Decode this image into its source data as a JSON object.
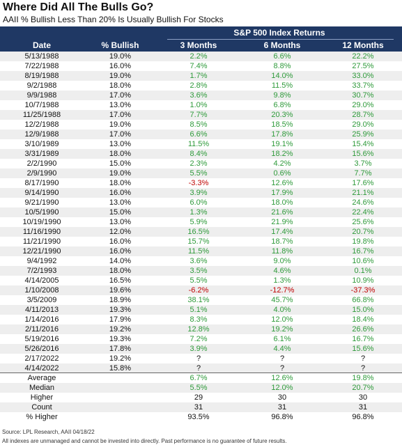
{
  "header": {
    "title": "Where Did All The Bulls Go?",
    "subtitle": "AAII % Bullish Less Than 20% Is Usually Bullish For Stocks"
  },
  "table": {
    "group_header": "S&P 500 Index Returns",
    "columns": [
      "Date",
      "% Bullish",
      "3 Months",
      "6 Months",
      "12 Months"
    ],
    "rows": [
      [
        "5/13/1988",
        "19.0%",
        "2.2%",
        "6.6%",
        "22.2%"
      ],
      [
        "7/22/1988",
        "16.0%",
        "7.4%",
        "8.8%",
        "27.5%"
      ],
      [
        "8/19/1988",
        "19.0%",
        "1.7%",
        "14.0%",
        "33.0%"
      ],
      [
        "9/2/1988",
        "18.0%",
        "2.8%",
        "11.5%",
        "33.7%"
      ],
      [
        "9/9/1988",
        "17.0%",
        "3.6%",
        "9.8%",
        "30.7%"
      ],
      [
        "10/7/1988",
        "13.0%",
        "1.0%",
        "6.8%",
        "29.0%"
      ],
      [
        "11/25/1988",
        "17.0%",
        "7.7%",
        "20.3%",
        "28.7%"
      ],
      [
        "12/2/1988",
        "19.0%",
        "8.5%",
        "18.5%",
        "29.0%"
      ],
      [
        "12/9/1988",
        "17.0%",
        "6.6%",
        "17.8%",
        "25.9%"
      ],
      [
        "3/10/1989",
        "13.0%",
        "11.5%",
        "19.1%",
        "15.4%"
      ],
      [
        "3/31/1989",
        "18.0%",
        "8.4%",
        "18.2%",
        "15.6%"
      ],
      [
        "2/2/1990",
        "15.0%",
        "2.3%",
        "4.2%",
        "3.7%"
      ],
      [
        "2/9/1990",
        "19.0%",
        "5.5%",
        "0.6%",
        "7.7%"
      ],
      [
        "8/17/1990",
        "18.0%",
        "-3.3%",
        "12.6%",
        "17.6%"
      ],
      [
        "9/14/1990",
        "16.0%",
        "3.9%",
        "17.9%",
        "21.1%"
      ],
      [
        "9/21/1990",
        "13.0%",
        "6.0%",
        "18.0%",
        "24.6%"
      ],
      [
        "10/5/1990",
        "15.0%",
        "1.3%",
        "21.6%",
        "22.4%"
      ],
      [
        "10/19/1990",
        "13.0%",
        "5.9%",
        "21.9%",
        "25.6%"
      ],
      [
        "11/16/1990",
        "12.0%",
        "16.5%",
        "17.4%",
        "20.7%"
      ],
      [
        "11/21/1990",
        "16.0%",
        "15.7%",
        "18.7%",
        "19.8%"
      ],
      [
        "12/21/1990",
        "16.0%",
        "11.5%",
        "11.8%",
        "16.7%"
      ],
      [
        "9/4/1992",
        "14.0%",
        "3.6%",
        "9.0%",
        "10.6%"
      ],
      [
        "7/2/1993",
        "18.0%",
        "3.5%",
        "4.6%",
        "0.1%"
      ],
      [
        "4/14/2005",
        "16.5%",
        "5.5%",
        "1.3%",
        "10.9%"
      ],
      [
        "1/10/2008",
        "19.6%",
        "-6.2%",
        "-12.7%",
        "-37.3%"
      ],
      [
        "3/5/2009",
        "18.9%",
        "38.1%",
        "45.7%",
        "66.8%"
      ],
      [
        "4/11/2013",
        "19.3%",
        "5.1%",
        "4.0%",
        "15.0%"
      ],
      [
        "1/14/2016",
        "17.9%",
        "8.3%",
        "12.0%",
        "18.4%"
      ],
      [
        "2/11/2016",
        "19.2%",
        "12.8%",
        "19.2%",
        "26.6%"
      ],
      [
        "5/19/2016",
        "19.3%",
        "7.2%",
        "6.1%",
        "16.7%"
      ],
      [
        "5/26/2016",
        "17.8%",
        "3.9%",
        "4.4%",
        "15.6%"
      ],
      [
        "2/17/2022",
        "19.2%",
        "?",
        "?",
        "?"
      ],
      [
        "4/14/2022",
        "15.8%",
        "?",
        "?",
        "?"
      ]
    ]
  },
  "summary": {
    "rows": [
      [
        "Average",
        "6.7%",
        "12.6%",
        "19.8%"
      ],
      [
        "Median",
        "5.5%",
        "12.0%",
        "20.7%"
      ],
      [
        "Higher",
        "29",
        "30",
        "30"
      ],
      [
        "Count",
        "31",
        "31",
        "31"
      ],
      [
        "% Higher",
        "93.5%",
        "96.8%",
        "96.8%"
      ]
    ]
  },
  "footer": {
    "source": "Source: LPL Research, AAII 04/18/22",
    "disclaimer": "All indexes are unmanaged and cannot be invested into directly. Past performance is no guarantee of future results."
  }
}
